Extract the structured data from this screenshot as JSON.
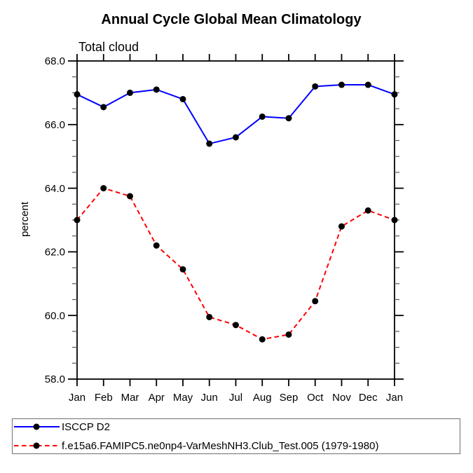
{
  "colors": {
    "series1_line": "#0000ff",
    "series2_line": "#ff0000",
    "marker": "#000000",
    "axis": "#000000",
    "minor_tick": "#555555",
    "legend_border": "#808080",
    "background": "#ffffff"
  },
  "chart_data": {
    "type": "line",
    "title": "Annual Cycle Global Mean Climatology",
    "subtitle": "Total cloud",
    "xlabel": "",
    "ylabel": "percent",
    "x_ticklabels": [
      "Jan",
      "Feb",
      "Mar",
      "Apr",
      "May",
      "Jun",
      "Jul",
      "Aug",
      "Sep",
      "Oct",
      "Nov",
      "Dec",
      "Jan"
    ],
    "ylim": [
      58.0,
      68.0
    ],
    "ytick_major": [
      58,
      60,
      62,
      64,
      66,
      68
    ],
    "ytick_labels": [
      "58.0",
      "60.0",
      "62.0",
      "64.0",
      "66.0",
      "68.0"
    ],
    "ytick_minor_step": 0.5,
    "grid": false,
    "legend_position": "bottom-left",
    "series": [
      {
        "name": "ISCCP D2",
        "color": "#0000ff",
        "style": "solid",
        "marker": "circle",
        "marker_color": "#000000",
        "values": [
          66.95,
          66.55,
          67.0,
          67.1,
          66.8,
          65.4,
          65.6,
          66.25,
          66.2,
          67.2,
          67.25,
          67.25,
          66.95
        ]
      },
      {
        "name": "f.e15a6.FAMIPC5.ne0np4-VarMeshNH3.Club_Test.005 (1979-1980)",
        "color": "#ff0000",
        "style": "dashed",
        "marker": "circle",
        "marker_color": "#000000",
        "values": [
          63.0,
          64.0,
          63.75,
          62.2,
          61.45,
          59.95,
          59.7,
          59.25,
          59.4,
          60.45,
          62.8,
          63.3,
          63.0
        ]
      }
    ]
  }
}
